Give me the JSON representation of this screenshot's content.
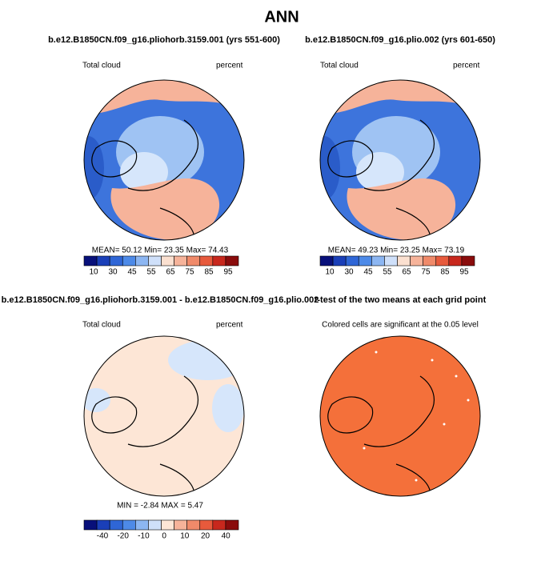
{
  "title": "ANN",
  "panels": [
    {
      "title": "b.e12.B1850CN.f09_g16.pliohorb.3159.001 (yrs 551-600)",
      "left_label": "Total cloud",
      "right_label": "percent",
      "stats": "MEAN=   50.12   Min=   23.35   Max=   74.43",
      "colorbar": {
        "labels": [
          10,
          30,
          45,
          55,
          65,
          75,
          85,
          95
        ],
        "colors": [
          "#08107a",
          "#1a3fb8",
          "#2f66d6",
          "#4d8ae8",
          "#8cb6f2",
          "#cfe0fa",
          "#fbe0d0",
          "#f6b39a",
          "#f08a6a",
          "#e75a3c",
          "#c8281d",
          "#8a0c0c"
        ]
      }
    },
    {
      "title": "b.e12.B1850CN.f09_g16.plio.002 (yrs 601-650)",
      "left_label": "Total cloud",
      "right_label": "percent",
      "stats": "MEAN=   49.23   Min=   23.25   Max=   73.19",
      "colorbar": {
        "labels": [
          10,
          30,
          45,
          55,
          65,
          75,
          85,
          95
        ],
        "colors": [
          "#08107a",
          "#1a3fb8",
          "#2f66d6",
          "#4d8ae8",
          "#8cb6f2",
          "#cfe0fa",
          "#fbe0d0",
          "#f6b39a",
          "#f08a6a",
          "#e75a3c",
          "#c8281d",
          "#8a0c0c"
        ]
      }
    },
    {
      "title": "b.e12.B1850CN.f09_g16.pliohorb.3159.001 - b.e12.B1850CN.f09_g16.plio.002",
      "left_label": "Total cloud",
      "right_label": "percent",
      "stats": "MIN =   -2.84  MAX =    5.47",
      "colorbar": {
        "labels": [
          -40,
          -20,
          -10,
          0,
          10,
          20,
          40
        ],
        "colors": [
          "#08107a",
          "#1a3fb8",
          "#2f66d6",
          "#4d8ae8",
          "#8cb6f2",
          "#cfe0fa",
          "#fde6d6",
          "#f6b39a",
          "#f08a6a",
          "#e75a3c",
          "#c8281d",
          "#8a0c0c"
        ]
      }
    },
    {
      "title": "t-test of the two means at each grid point",
      "subtitle": "Colored cells are significant at the 0.05 level"
    }
  ]
}
